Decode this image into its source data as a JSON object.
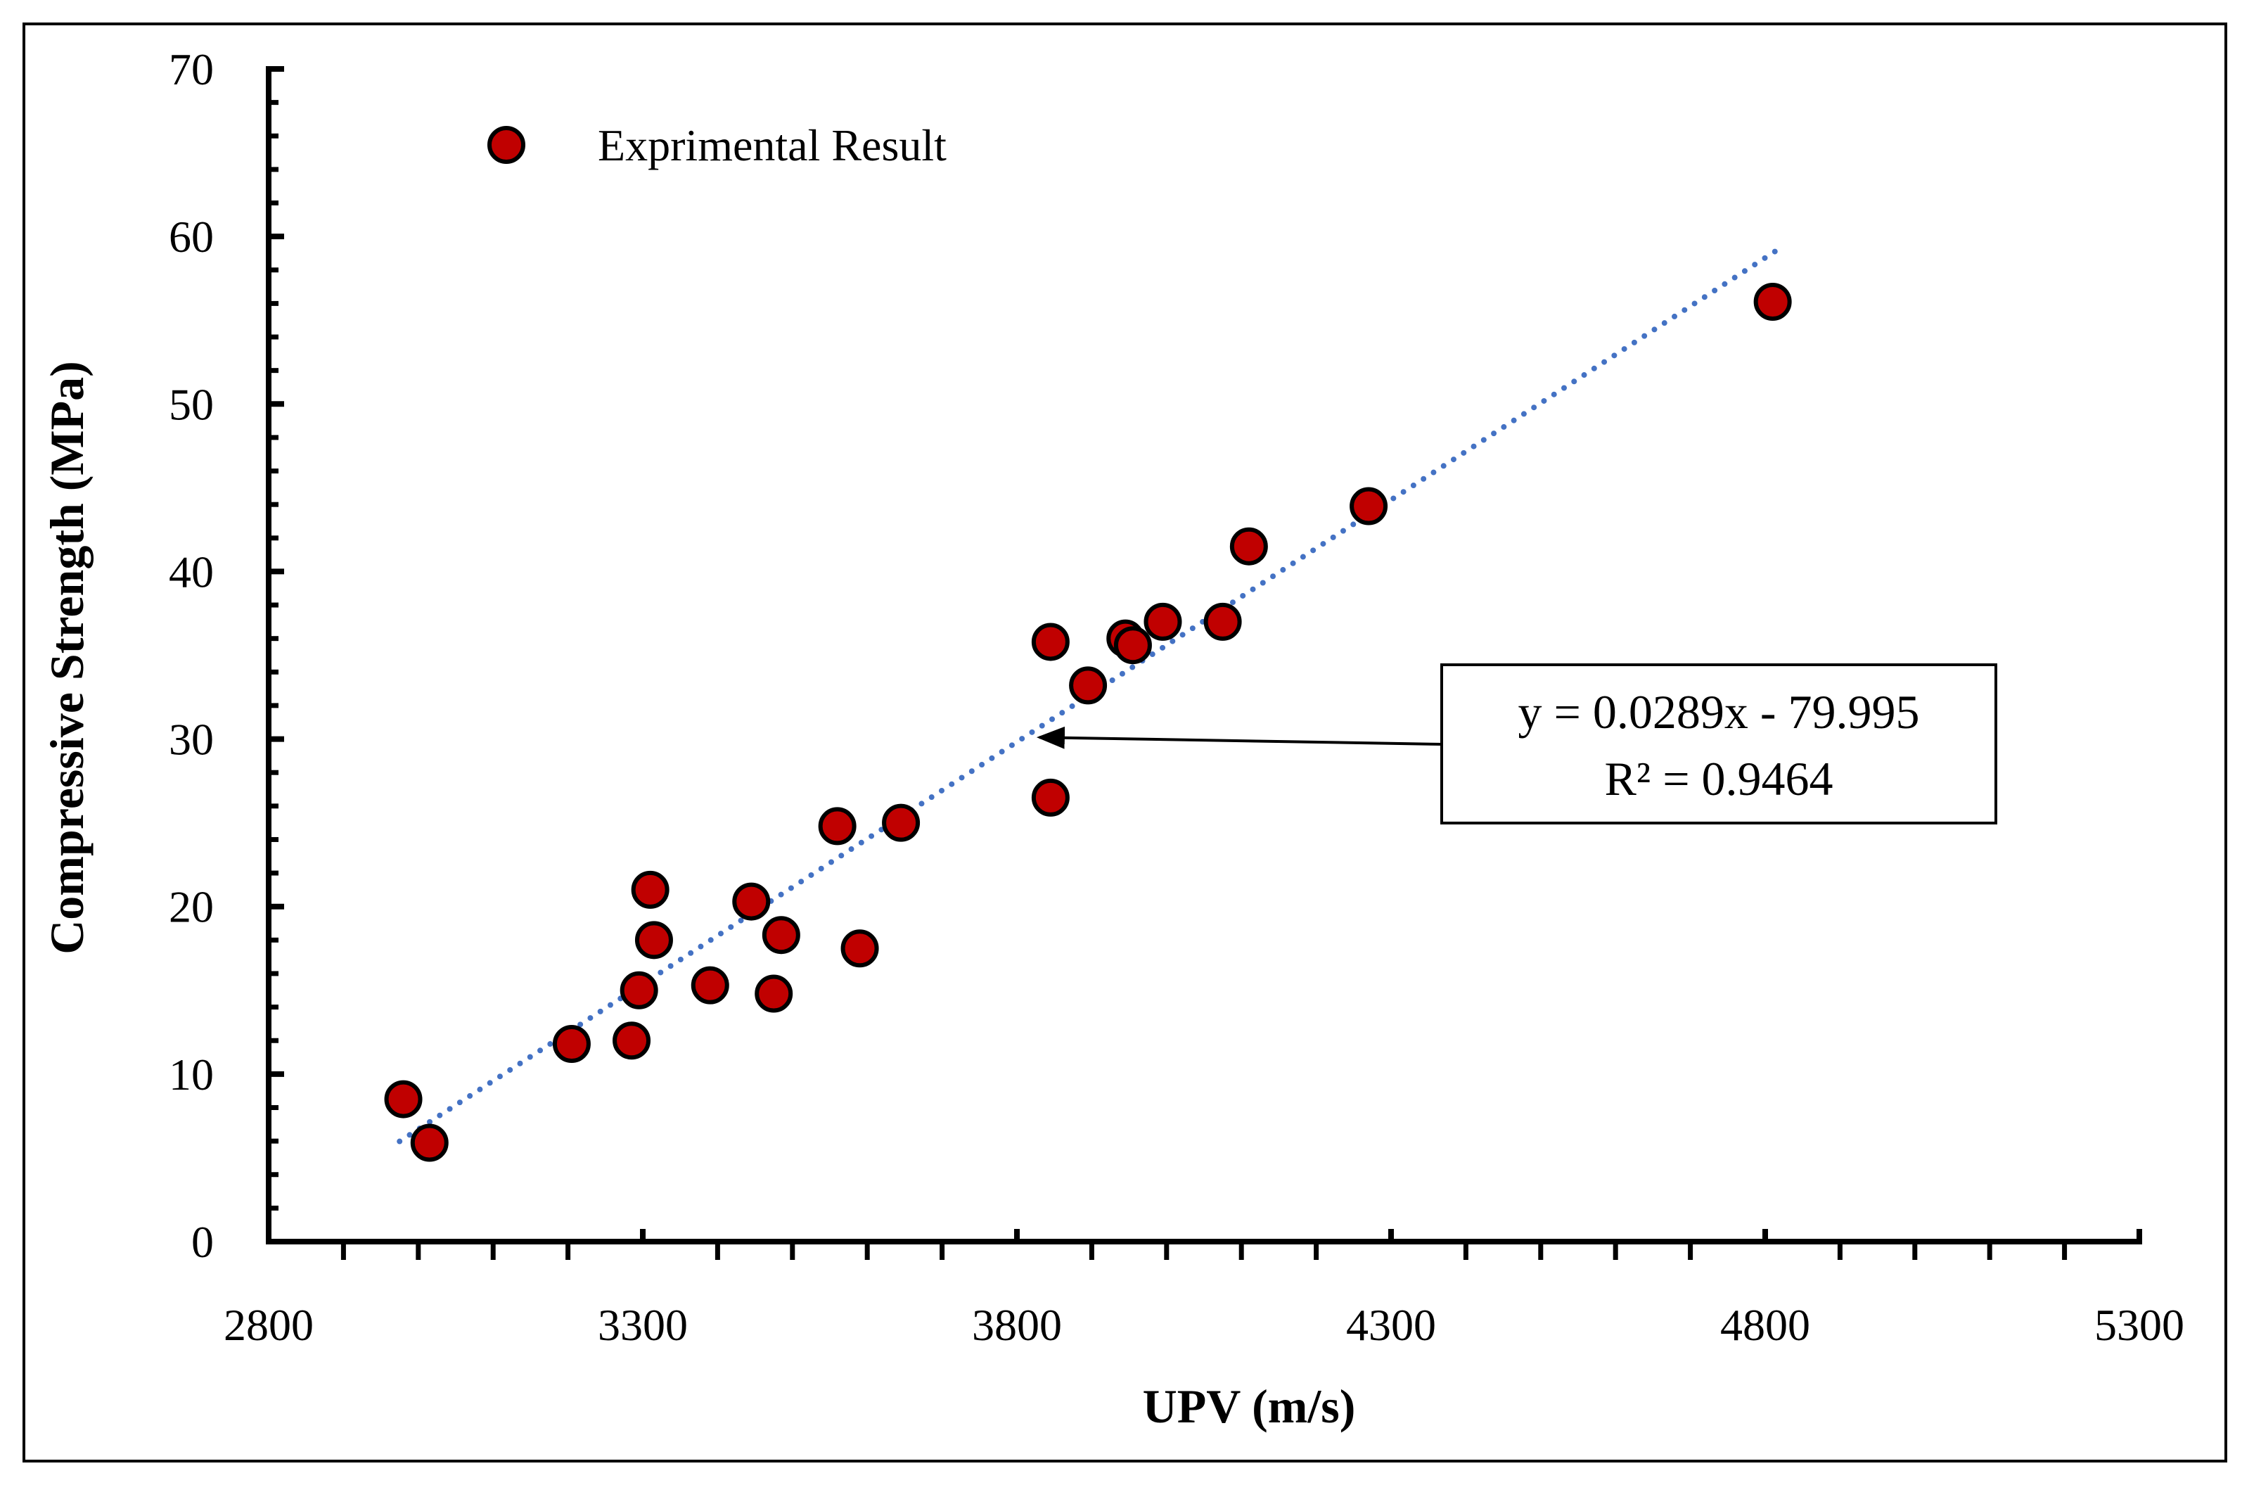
{
  "chart_data": {
    "type": "scatter",
    "xlabel": "UPV (m/s)",
    "ylabel": "Compressive Strength (MPa)",
    "xlim": [
      2800,
      5300
    ],
    "ylim": [
      0,
      70
    ],
    "xticks": [
      2800,
      3300,
      3800,
      4300,
      4800,
      5300
    ],
    "yticks": [
      0,
      10,
      20,
      30,
      40,
      50,
      60,
      70
    ],
    "grid": false,
    "legend": {
      "label": "Exprimental Result",
      "placement": "top-left"
    },
    "series": [
      {
        "name": "Exprimental Result",
        "color": "#c00000",
        "edge_color": "#000000",
        "x": [
          2980,
          3015,
          3205,
          3285,
          3295,
          3310,
          3315,
          3390,
          3445,
          3475,
          3485,
          3560,
          3590,
          3645,
          3845,
          3845,
          3895,
          3945,
          3955,
          3995,
          4075,
          4110,
          4270,
          4810
        ],
        "y": [
          8.5,
          5.9,
          11.8,
          12.0,
          15.0,
          21.0,
          18.0,
          15.3,
          20.3,
          14.8,
          18.3,
          24.8,
          17.5,
          25.0,
          26.5,
          35.8,
          33.2,
          36.0,
          35.6,
          37.0,
          37.0,
          41.5,
          43.9,
          56.1
        ]
      }
    ],
    "trendline": {
      "style": "dotted",
      "color": "#4472c4",
      "slope": 0.0289,
      "intercept": -79.995,
      "x_range": [
        2975,
        4815
      ],
      "equation_label": "y = 0.0289x - 79.995",
      "r2_label": "R² = 0.9464",
      "arrow_target": [
        3830,
        30.1
      ]
    }
  }
}
